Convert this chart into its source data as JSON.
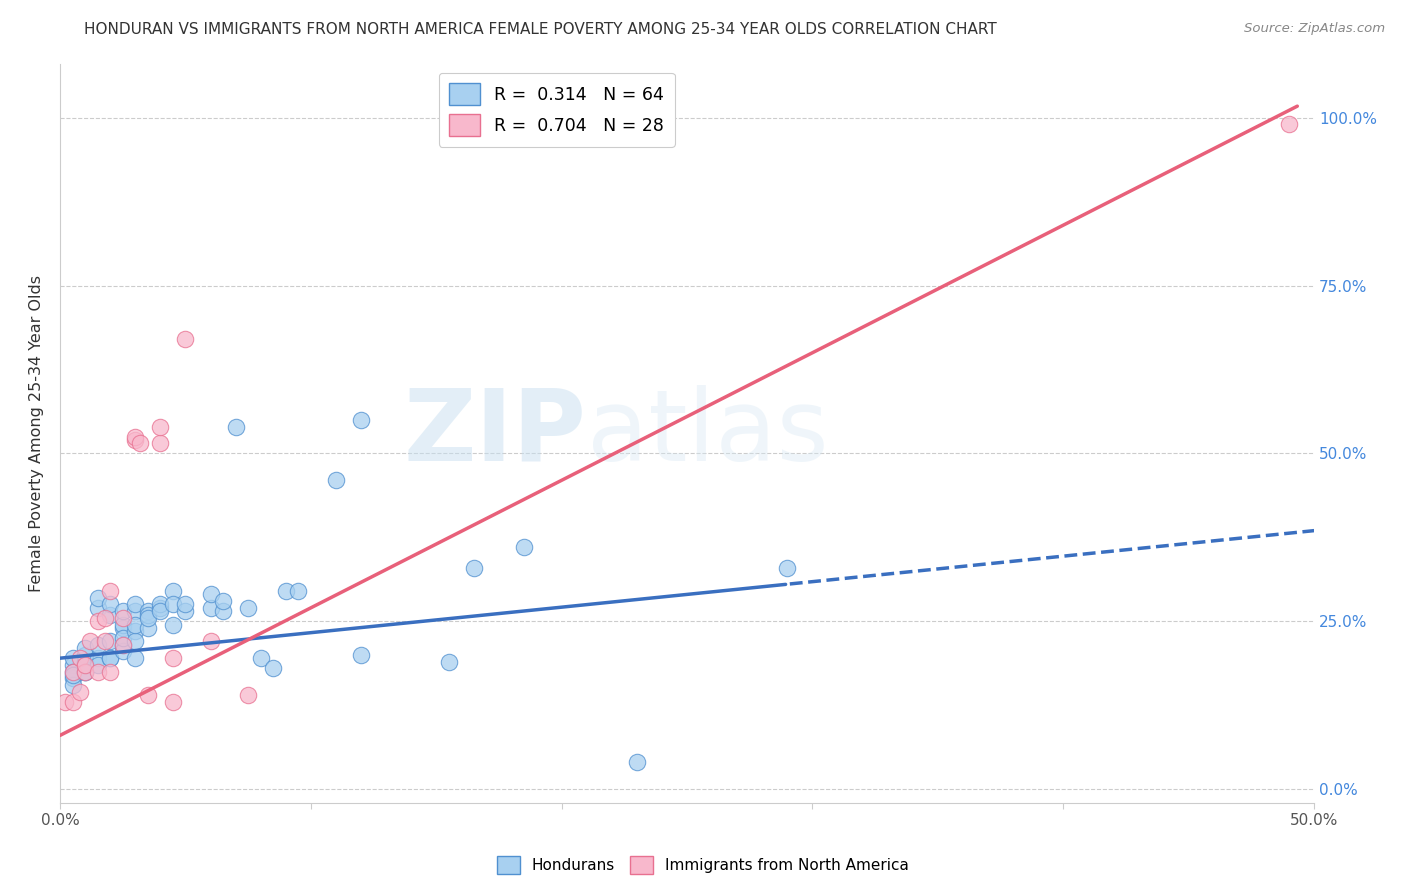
{
  "title": "HONDURAN VS IMMIGRANTS FROM NORTH AMERICA FEMALE POVERTY AMONG 25-34 YEAR OLDS CORRELATION CHART",
  "source": "Source: ZipAtlas.com",
  "ylabel": "Female Poverty Among 25-34 Year Olds",
  "xlim": [
    0.0,
    0.5
  ],
  "ylim": [
    -0.02,
    1.08
  ],
  "blue_R": 0.314,
  "blue_N": 64,
  "pink_R": 0.704,
  "pink_N": 28,
  "blue_color": "#a8d0f0",
  "pink_color": "#f8b8cc",
  "blue_edge_color": "#5090d0",
  "pink_edge_color": "#e87090",
  "blue_line_color": "#3a6fc0",
  "pink_line_color": "#e8607a",
  "watermark_zip": "ZIP",
  "watermark_atlas": "atlas",
  "blue_points": [
    [
      0.005,
      0.185
    ],
    [
      0.005,
      0.165
    ],
    [
      0.005,
      0.195
    ],
    [
      0.005,
      0.175
    ],
    [
      0.005,
      0.155
    ],
    [
      0.005,
      0.17
    ],
    [
      0.01,
      0.19
    ],
    [
      0.01,
      0.2
    ],
    [
      0.01,
      0.185
    ],
    [
      0.01,
      0.175
    ],
    [
      0.01,
      0.21
    ],
    [
      0.01,
      0.175
    ],
    [
      0.015,
      0.195
    ],
    [
      0.015,
      0.185
    ],
    [
      0.015,
      0.27
    ],
    [
      0.015,
      0.285
    ],
    [
      0.015,
      0.215
    ],
    [
      0.02,
      0.195
    ],
    [
      0.02,
      0.22
    ],
    [
      0.02,
      0.26
    ],
    [
      0.02,
      0.275
    ],
    [
      0.02,
      0.195
    ],
    [
      0.025,
      0.215
    ],
    [
      0.025,
      0.24
    ],
    [
      0.025,
      0.245
    ],
    [
      0.025,
      0.205
    ],
    [
      0.025,
      0.225
    ],
    [
      0.025,
      0.265
    ],
    [
      0.03,
      0.195
    ],
    [
      0.03,
      0.235
    ],
    [
      0.03,
      0.265
    ],
    [
      0.03,
      0.22
    ],
    [
      0.03,
      0.245
    ],
    [
      0.03,
      0.275
    ],
    [
      0.035,
      0.24
    ],
    [
      0.035,
      0.265
    ],
    [
      0.035,
      0.26
    ],
    [
      0.035,
      0.255
    ],
    [
      0.04,
      0.27
    ],
    [
      0.04,
      0.275
    ],
    [
      0.04,
      0.265
    ],
    [
      0.045,
      0.295
    ],
    [
      0.045,
      0.275
    ],
    [
      0.045,
      0.245
    ],
    [
      0.05,
      0.265
    ],
    [
      0.05,
      0.275
    ],
    [
      0.06,
      0.27
    ],
    [
      0.06,
      0.29
    ],
    [
      0.065,
      0.265
    ],
    [
      0.065,
      0.28
    ],
    [
      0.07,
      0.54
    ],
    [
      0.075,
      0.27
    ],
    [
      0.08,
      0.195
    ],
    [
      0.085,
      0.18
    ],
    [
      0.09,
      0.295
    ],
    [
      0.095,
      0.295
    ],
    [
      0.11,
      0.46
    ],
    [
      0.12,
      0.55
    ],
    [
      0.12,
      0.2
    ],
    [
      0.155,
      0.19
    ],
    [
      0.165,
      0.33
    ],
    [
      0.185,
      0.36
    ],
    [
      0.23,
      0.04
    ],
    [
      0.29,
      0.33
    ]
  ],
  "pink_points": [
    [
      0.002,
      0.13
    ],
    [
      0.005,
      0.13
    ],
    [
      0.005,
      0.175
    ],
    [
      0.008,
      0.195
    ],
    [
      0.008,
      0.145
    ],
    [
      0.01,
      0.175
    ],
    [
      0.01,
      0.185
    ],
    [
      0.012,
      0.22
    ],
    [
      0.015,
      0.25
    ],
    [
      0.015,
      0.175
    ],
    [
      0.018,
      0.22
    ],
    [
      0.018,
      0.255
    ],
    [
      0.02,
      0.295
    ],
    [
      0.02,
      0.175
    ],
    [
      0.025,
      0.215
    ],
    [
      0.025,
      0.255
    ],
    [
      0.03,
      0.52
    ],
    [
      0.03,
      0.525
    ],
    [
      0.032,
      0.515
    ],
    [
      0.035,
      0.14
    ],
    [
      0.04,
      0.515
    ],
    [
      0.04,
      0.54
    ],
    [
      0.045,
      0.13
    ],
    [
      0.045,
      0.195
    ],
    [
      0.05,
      0.67
    ],
    [
      0.06,
      0.22
    ],
    [
      0.075,
      0.14
    ],
    [
      0.49,
      0.99
    ]
  ],
  "blue_line_intercept": 0.195,
  "blue_line_slope": 0.38,
  "pink_line_intercept": 0.08,
  "pink_line_slope": 1.9
}
